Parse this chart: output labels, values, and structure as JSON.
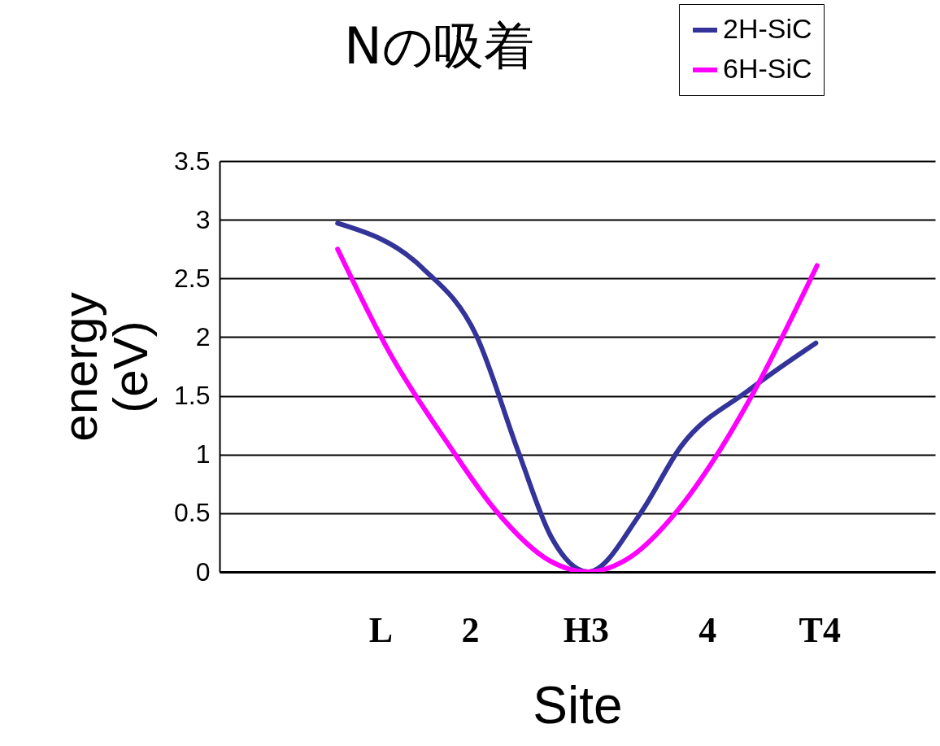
{
  "chart_data": {
    "type": "line",
    "title": "Nの吸着",
    "xlabel": "Site",
    "ylabel": "energy (eV)",
    "xlim": [
      0,
      6
    ],
    "xticks": [
      {
        "value": 1.35,
        "label": "L"
      },
      {
        "value": 2.1,
        "label": "2"
      },
      {
        "value": 3.07,
        "label": "H3"
      },
      {
        "value": 4.09,
        "label": "4"
      },
      {
        "value": 5.03,
        "label": "T4"
      }
    ],
    "ylim": [
      0,
      3.5
    ],
    "yticks": [
      0,
      0.5,
      1,
      1.5,
      2,
      2.5,
      3,
      3.5
    ],
    "grid": "y",
    "legend": "top right",
    "series": [
      {
        "name": "2H-SiC",
        "color": "#333399",
        "x": [
          0.99,
          1.7,
          2.15,
          2.51,
          2.78,
          3.09,
          3.53,
          3.87,
          4.44,
          5.0
        ],
        "values": [
          2.97,
          2.59,
          2.02,
          1.01,
          0.3,
          0,
          0.5,
          1.07,
          1.55,
          1.95
        ]
      },
      {
        "name": "6H-SiC",
        "color": "#ff00ff",
        "x": [
          0.99,
          1.43,
          1.93,
          2.31,
          2.76,
          3.09,
          3.45,
          3.83,
          4.16,
          4.44,
          5.01
        ],
        "values": [
          2.75,
          1.86,
          1.07,
          0.53,
          0.1,
          0,
          0.13,
          0.51,
          0.98,
          1.46,
          2.61
        ]
      }
    ]
  }
}
